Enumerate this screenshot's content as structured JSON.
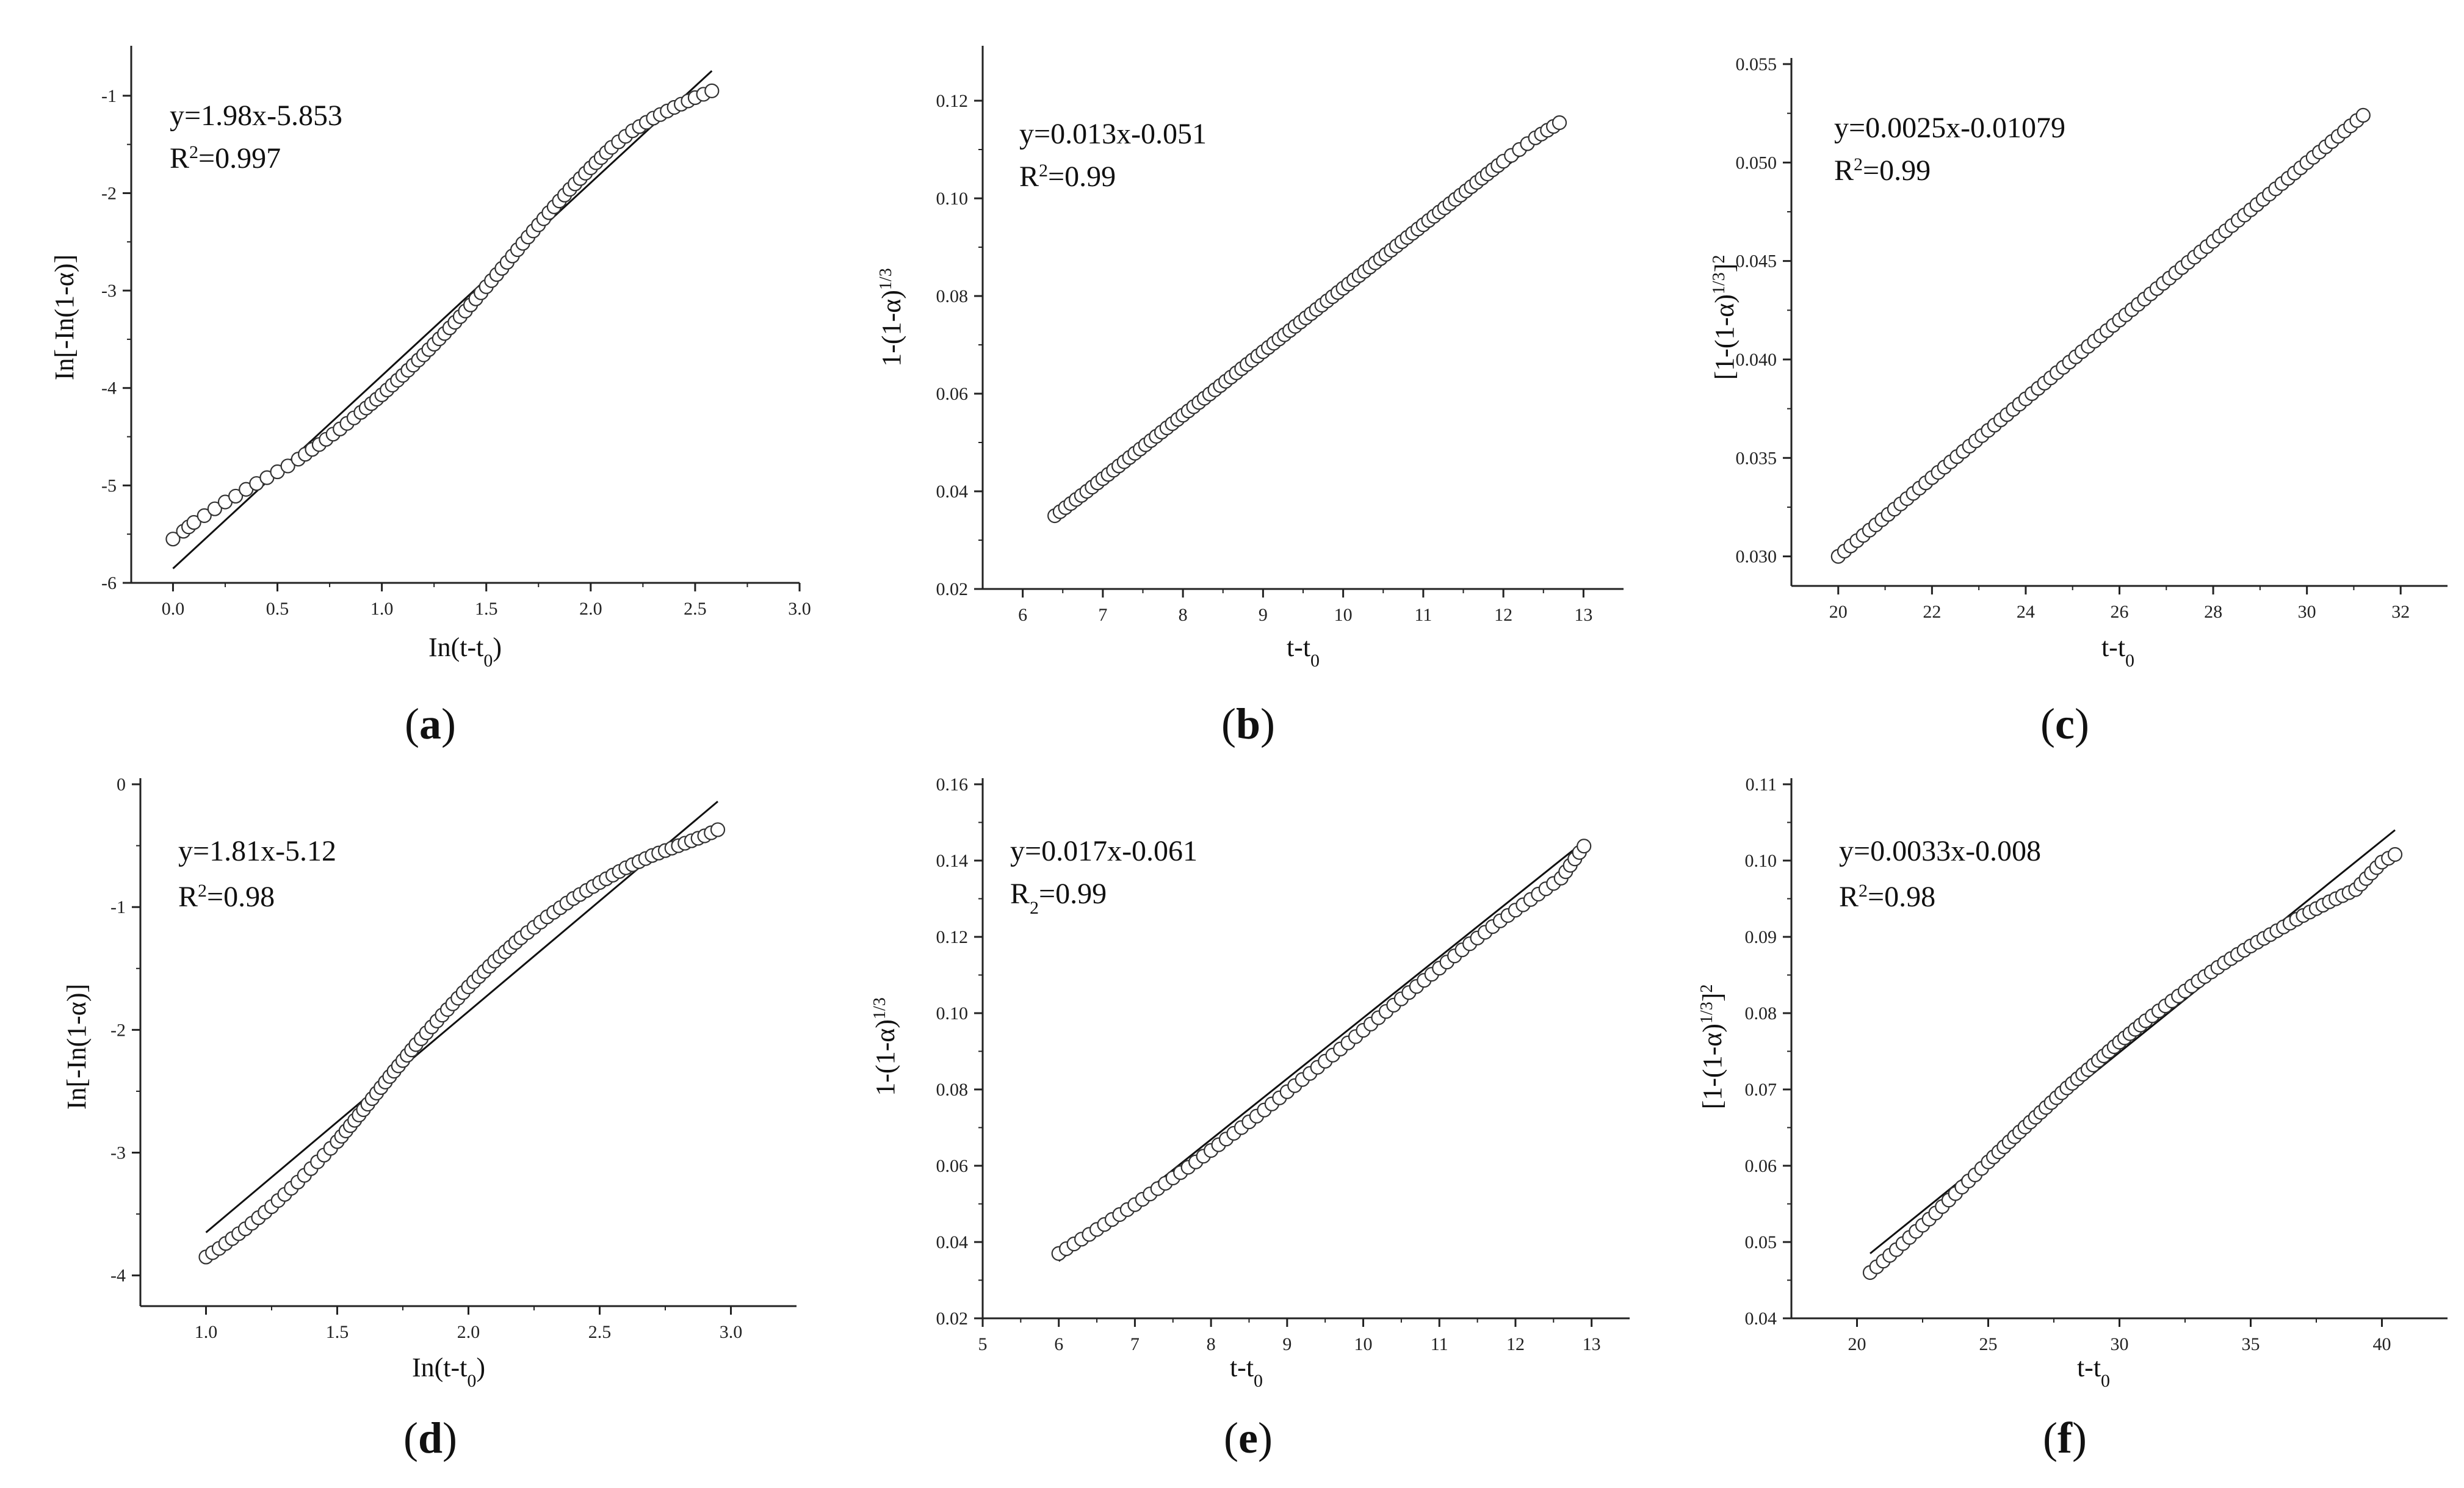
{
  "chart_data": [
    {
      "type": "scatter",
      "panel_label": "a",
      "annotation": {
        "line1": "y=1.98x-5.853",
        "r_prefix": "R",
        "r_sup": "2",
        "r_suffix": "=0.997"
      },
      "xlabel": {
        "main": "In(t-t",
        "sub": "0",
        "tail": ")"
      },
      "ylabel": {
        "main": "In[-In(1-α)]"
      },
      "xlim": [
        -0.2,
        3.0
      ],
      "ylim": [
        -6,
        -0.55
      ],
      "xticks": [
        {
          "v": 0.0,
          "label": "0.0"
        },
        {
          "v": 0.5,
          "label": "0.5"
        },
        {
          "v": 1.0,
          "label": "1.0"
        },
        {
          "v": 1.5,
          "label": "1.5"
        },
        {
          "v": 2.0,
          "label": "2.0"
        },
        {
          "v": 2.5,
          "label": "2.5"
        },
        {
          "v": 3.0,
          "label": "3.0"
        }
      ],
      "yticks": [
        {
          "v": -6,
          "label": "-6"
        },
        {
          "v": -5,
          "label": "-5"
        },
        {
          "v": -4,
          "label": "-4"
        },
        {
          "v": -3,
          "label": "-3"
        },
        {
          "v": -2,
          "label": "-2"
        },
        {
          "v": -1,
          "label": "-1"
        }
      ],
      "fit_line": {
        "x": [
          0.0,
          2.58
        ],
        "y": [
          -5.853,
          -0.745
        ]
      },
      "series": {
        "x": [
          0.0,
          0.05,
          0.1,
          0.15,
          0.2,
          0.25,
          0.3,
          0.35,
          0.4,
          0.45,
          0.5,
          0.55,
          0.6,
          0.7,
          0.8,
          0.9,
          1.0,
          1.1,
          1.2,
          1.3,
          1.4,
          1.5,
          1.6,
          1.7,
          1.8,
          1.9,
          2.0,
          2.1,
          2.2,
          2.3,
          2.4,
          2.5,
          2.58
        ],
        "y": [
          -5.55,
          -5.47,
          -5.38,
          -5.31,
          -5.24,
          -5.17,
          -5.11,
          -5.04,
          -4.98,
          -4.92,
          -4.86,
          -4.8,
          -4.73,
          -4.58,
          -4.42,
          -4.25,
          -4.07,
          -3.87,
          -3.66,
          -3.44,
          -3.21,
          -2.96,
          -2.71,
          -2.45,
          -2.2,
          -1.96,
          -1.74,
          -1.53,
          -1.36,
          -1.23,
          -1.12,
          -1.02,
          -0.95
        ]
      }
    },
    {
      "type": "scatter",
      "panel_label": "b",
      "annotation": {
        "line1": "y=0.013x-0.051",
        "r_prefix": "R",
        "r_sup": "2",
        "r_suffix": "=0.99"
      },
      "xlabel": {
        "main": "t-t",
        "sub": "0",
        "tail": ""
      },
      "ylabel": {
        "main": "1-(1-α)",
        "sup": "1/3"
      },
      "xlim": [
        5.5,
        13.5
      ],
      "ylim": [
        0.02,
        0.13
      ],
      "xticks": [
        {
          "v": 6,
          "label": "6"
        },
        {
          "v": 7,
          "label": "7"
        },
        {
          "v": 8,
          "label": "8"
        },
        {
          "v": 9,
          "label": "9"
        },
        {
          "v": 10,
          "label": "10"
        },
        {
          "v": 11,
          "label": "11"
        },
        {
          "v": 12,
          "label": "12"
        },
        {
          "v": 13,
          "label": "13"
        }
      ],
      "yticks": [
        {
          "v": 0.02,
          "label": "0.02"
        },
        {
          "v": 0.04,
          "label": "0.04"
        },
        {
          "v": 0.06,
          "label": "0.06"
        },
        {
          "v": 0.08,
          "label": "0.08"
        },
        {
          "v": 0.1,
          "label": "0.10"
        },
        {
          "v": 0.12,
          "label": "0.12"
        }
      ],
      "fit_line": {
        "x": [
          6.4,
          12.7
        ],
        "y": [
          0.0342,
          0.1151
        ]
      },
      "series": {
        "x": [
          6.4,
          6.6,
          6.8,
          7.0,
          7.2,
          7.4,
          7.6,
          7.8,
          8.0,
          8.2,
          8.4,
          8.6,
          8.8,
          9.0,
          9.2,
          9.4,
          9.6,
          9.8,
          10.0,
          10.2,
          10.4,
          10.6,
          10.8,
          11.0,
          11.2,
          11.4,
          11.6,
          11.8,
          12.0,
          12.2,
          12.4,
          12.7
        ],
        "y": [
          0.035,
          0.0375,
          0.04,
          0.0426,
          0.0452,
          0.0478,
          0.0504,
          0.053,
          0.0556,
          0.0582,
          0.0608,
          0.0634,
          0.066,
          0.0686,
          0.0712,
          0.0738,
          0.0764,
          0.079,
          0.0816,
          0.0842,
          0.0868,
          0.0894,
          0.092,
          0.0946,
          0.0972,
          0.0998,
          0.1024,
          0.105,
          0.1076,
          0.11,
          0.1124,
          0.1155
        ]
      }
    },
    {
      "type": "scatter",
      "panel_label": "c",
      "annotation": {
        "line1": "y=0.0025x-0.01079",
        "r_prefix": "R",
        "r_sup": "2",
        "r_suffix": "=0.99"
      },
      "xlabel": {
        "main": "t-t",
        "sub": "0",
        "tail": ""
      },
      "ylabel": {
        "main": "[1-(1-α)",
        "sup": "1/3",
        "tail": "]",
        "sup2": "2"
      },
      "xlim": [
        19,
        33
      ],
      "ylim": [
        0.0285,
        0.055
      ],
      "xticks": [
        {
          "v": 20,
          "label": "20"
        },
        {
          "v": 22,
          "label": "22"
        },
        {
          "v": 24,
          "label": "24"
        },
        {
          "v": 26,
          "label": "26"
        },
        {
          "v": 28,
          "label": "28"
        },
        {
          "v": 30,
          "label": "30"
        },
        {
          "v": 32,
          "label": "32"
        }
      ],
      "yticks": [
        {
          "v": 0.03,
          "label": "0.030"
        },
        {
          "v": 0.035,
          "label": "0.035"
        },
        {
          "v": 0.04,
          "label": "0.040"
        },
        {
          "v": 0.045,
          "label": "0.045"
        },
        {
          "v": 0.05,
          "label": "0.050"
        },
        {
          "v": 0.055,
          "label": "0.055"
        }
      ],
      "fit_line": {
        "x": [
          20.0,
          31.2
        ],
        "y": [
          0.03,
          0.0524
        ]
      },
      "series": {
        "x": [
          20.0,
          20.4,
          20.8,
          21.2,
          21.6,
          22.0,
          22.4,
          22.8,
          23.2,
          23.6,
          24.0,
          24.4,
          24.8,
          25.2,
          25.6,
          26.0,
          26.4,
          26.8,
          27.2,
          27.6,
          28.0,
          28.4,
          28.8,
          29.2,
          29.6,
          30.0,
          30.4,
          30.8,
          31.2
        ],
        "y": [
          0.03,
          0.0308,
          0.0316,
          0.0324,
          0.0332,
          0.034,
          0.0348,
          0.0356,
          0.0364,
          0.0372,
          0.038,
          0.0388,
          0.0396,
          0.0404,
          0.0412,
          0.042,
          0.0428,
          0.0436,
          0.0444,
          0.0452,
          0.046,
          0.0468,
          0.0476,
          0.0484,
          0.0492,
          0.05,
          0.0508,
          0.0516,
          0.0524
        ]
      }
    },
    {
      "type": "scatter",
      "panel_label": "d",
      "annotation": {
        "line1": "y=1.81x-5.12",
        "r_prefix": "R",
        "r_sup": "2",
        "r_suffix": "=0.98"
      },
      "xlabel": {
        "main": "In(t-t",
        "sub": "0",
        "tail": ")"
      },
      "ylabel": {
        "main": "In[-In(1-α)]"
      },
      "xlim": [
        0.75,
        3.25
      ],
      "ylim": [
        -4.25,
        0
      ],
      "xticks": [
        {
          "v": 1.0,
          "label": "1.0"
        },
        {
          "v": 1.5,
          "label": "1.5"
        },
        {
          "v": 2.0,
          "label": "2.0"
        },
        {
          "v": 2.5,
          "label": "2.5"
        },
        {
          "v": 3.0,
          "label": "3.0"
        }
      ],
      "yticks": [
        {
          "v": -4,
          "label": "-4"
        },
        {
          "v": -3,
          "label": "-3"
        },
        {
          "v": -2,
          "label": "-2"
        },
        {
          "v": -1,
          "label": "-1"
        },
        {
          "v": 0,
          "label": "0"
        }
      ],
      "fit_line": {
        "x": [
          1.0,
          2.95
        ],
        "y": [
          -3.65,
          -0.14
        ]
      },
      "series": {
        "x": [
          1.0,
          1.05,
          1.1,
          1.15,
          1.2,
          1.25,
          1.3,
          1.35,
          1.4,
          1.45,
          1.5,
          1.6,
          1.7,
          1.8,
          1.9,
          2.0,
          2.1,
          2.2,
          2.3,
          2.4,
          2.5,
          2.6,
          2.7,
          2.8,
          2.9,
          2.95
        ],
        "y": [
          -3.85,
          -3.78,
          -3.7,
          -3.62,
          -3.53,
          -3.44,
          -3.34,
          -3.24,
          -3.13,
          -3.02,
          -2.91,
          -2.65,
          -2.38,
          -2.12,
          -1.88,
          -1.65,
          -1.44,
          -1.25,
          -1.08,
          -0.93,
          -0.8,
          -0.68,
          -0.58,
          -0.5,
          -0.42,
          -0.37
        ]
      }
    },
    {
      "type": "scatter",
      "panel_label": "e",
      "annotation": {
        "line1": "y=0.017x-0.061",
        "r_prefix": "R",
        "r_sub": "2",
        "r_suffix": "=0.99"
      },
      "xlabel": {
        "main": "t-t",
        "sub": "0",
        "tail": ""
      },
      "ylabel": {
        "main": "1-(1-α)",
        "sup": "1/3"
      },
      "xlim": [
        5,
        13.5
      ],
      "ylim": [
        0.02,
        0.16
      ],
      "xticks": [
        {
          "v": 5,
          "label": "5"
        },
        {
          "v": 6,
          "label": "6"
        },
        {
          "v": 7,
          "label": "7"
        },
        {
          "v": 8,
          "label": "8"
        },
        {
          "v": 9,
          "label": "9"
        },
        {
          "v": 10,
          "label": "10"
        },
        {
          "v": 11,
          "label": "11"
        },
        {
          "v": 12,
          "label": "12"
        },
        {
          "v": 13,
          "label": "13"
        }
      ],
      "yticks": [
        {
          "v": 0.02,
          "label": "0.02"
        },
        {
          "v": 0.04,
          "label": "0.04"
        },
        {
          "v": 0.06,
          "label": "0.06"
        },
        {
          "v": 0.08,
          "label": "0.08"
        },
        {
          "v": 0.1,
          "label": "0.10"
        },
        {
          "v": 0.12,
          "label": "0.12"
        },
        {
          "v": 0.14,
          "label": "0.14"
        },
        {
          "v": 0.16,
          "label": "0.16"
        }
      ],
      "fit_line": {
        "x": [
          6.0,
          12.9
        ],
        "y": [
          0.035,
          0.145
        ]
      },
      "series": {
        "x": [
          6.0,
          6.2,
          6.4,
          6.6,
          6.8,
          7.0,
          7.2,
          7.4,
          7.6,
          7.8,
          8.0,
          8.2,
          8.4,
          8.6,
          8.8,
          9.0,
          9.2,
          9.4,
          9.6,
          9.8,
          10.0,
          10.2,
          10.4,
          10.6,
          10.8,
          11.0,
          11.2,
          11.4,
          11.6,
          11.8,
          12.0,
          12.2,
          12.4,
          12.6,
          12.9
        ],
        "y": [
          0.037,
          0.0395,
          0.042,
          0.0446,
          0.0472,
          0.0498,
          0.0526,
          0.0554,
          0.0582,
          0.061,
          0.064,
          0.067,
          0.07,
          0.073,
          0.0762,
          0.0794,
          0.0826,
          0.0858,
          0.089,
          0.0922,
          0.0955,
          0.0988,
          0.1021,
          0.1054,
          0.1086,
          0.1118,
          0.115,
          0.1182,
          0.1212,
          0.1242,
          0.127,
          0.1298,
          0.1326,
          0.1354,
          0.1438
        ]
      }
    },
    {
      "type": "scatter",
      "panel_label": "f",
      "annotation": {
        "line1": "y=0.0033x-0.008",
        "r_prefix": "R",
        "r_sup": "2",
        "r_suffix": "=0.98"
      },
      "xlabel": {
        "main": "t-t",
        "sub": "0",
        "tail": ""
      },
      "ylabel": {
        "main": "[1-(1-α)",
        "sup": "1/3",
        "tail": "]",
        "sup2": "2"
      },
      "xlim": [
        17.5,
        42.5
      ],
      "ylim": [
        0.04,
        0.11
      ],
      "xticks": [
        {
          "v": 20,
          "label": "20"
        },
        {
          "v": 25,
          "label": "25"
        },
        {
          "v": 30,
          "label": "30"
        },
        {
          "v": 35,
          "label": "35"
        },
        {
          "v": 40,
          "label": "40"
        }
      ],
      "yticks": [
        {
          "v": 0.04,
          "label": "0.04"
        },
        {
          "v": 0.05,
          "label": "0.05"
        },
        {
          "v": 0.06,
          "label": "0.06"
        },
        {
          "v": 0.07,
          "label": "0.07"
        },
        {
          "v": 0.08,
          "label": "0.08"
        },
        {
          "v": 0.09,
          "label": "0.09"
        },
        {
          "v": 0.1,
          "label": "0.10"
        },
        {
          "v": 0.11,
          "label": "0.11"
        }
      ],
      "fit_line": {
        "x": [
          20.5,
          40.5
        ],
        "y": [
          0.0485,
          0.104
        ]
      },
      "series": {
        "x": [
          20.5,
          21,
          21.5,
          22,
          22.5,
          23,
          23.5,
          24,
          24.5,
          25,
          26,
          27,
          28,
          29,
          30,
          31,
          32,
          33,
          34,
          35,
          36,
          37,
          38,
          39,
          40,
          40.5
        ],
        "y": [
          0.046,
          0.0475,
          0.049,
          0.0506,
          0.0522,
          0.0538,
          0.0555,
          0.0572,
          0.0588,
          0.0605,
          0.0638,
          0.067,
          0.0702,
          0.0732,
          0.0762,
          0.079,
          0.0816,
          0.0842,
          0.0866,
          0.0888,
          0.0908,
          0.0928,
          0.0946,
          0.0962,
          0.0998,
          0.1008
        ]
      }
    }
  ]
}
